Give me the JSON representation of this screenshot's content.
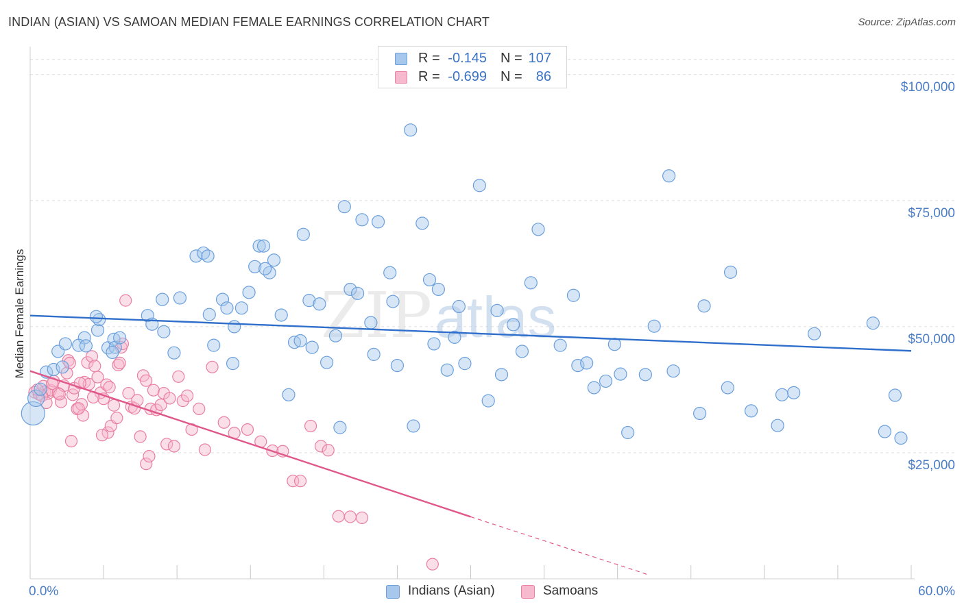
{
  "header": {
    "title": "INDIAN (ASIAN) VS SAMOAN MEDIAN FEMALE EARNINGS CORRELATION CHART",
    "source": "Source: ZipAtlas.com"
  },
  "legend_top": {
    "rows": [
      {
        "r_label": "R =",
        "r_value": "-0.145",
        "n_label": "N =",
        "n_value": "107"
      },
      {
        "r_label": "R =",
        "r_value": "-0.699",
        "n_label": "N =",
        "n_value": "86"
      }
    ]
  },
  "legend_bottom": {
    "items": [
      {
        "label": "Indians (Asian)"
      },
      {
        "label": "Samoans"
      }
    ]
  },
  "watermark": {
    "part1": "ZIP",
    "part2": "atlas"
  },
  "colors": {
    "blue_fill": "#a7c7ec",
    "blue_stroke": "#6a9fdc",
    "blue_line": "#2f6fcb",
    "pink_fill": "#f6b9cd",
    "pink_stroke": "#e97fa3",
    "pink_line": "#e0588a",
    "axis_text": "#4a7cc7",
    "grid": "#dcdcdc"
  },
  "chart_data": {
    "type": "scatter",
    "title": "INDIAN (ASIAN) VS SAMOAN MEDIAN FEMALE EARNINGS CORRELATION CHART",
    "xlabel": "",
    "ylabel": "Median Female Earnings",
    "xlim": [
      0,
      60
    ],
    "ylim": [
      0,
      105000
    ],
    "x_tick_labels": {
      "left": "0.0%",
      "right": "60.0%"
    },
    "y_ticks": [
      {
        "value": 25000,
        "label": "$25,000"
      },
      {
        "value": 50000,
        "label": "$50,000"
      },
      {
        "value": 75000,
        "label": "$75,000"
      },
      {
        "value": 100000,
        "label": "$100,000"
      }
    ],
    "grid": true,
    "legend": "bottom-center",
    "series": [
      {
        "name": "Indians (Asian)",
        "color": "#6a9fdc",
        "r": -0.145,
        "n": 107,
        "trend": {
          "x0": 0,
          "y0": 52200,
          "x1": 60,
          "y1": 45200
        },
        "points": [
          [
            0.2,
            32800
          ],
          [
            0.4,
            35800
          ],
          [
            0.7,
            37600
          ],
          [
            1.1,
            41000
          ],
          [
            1.6,
            41500
          ],
          [
            2.2,
            42000
          ],
          [
            1.9,
            45100
          ],
          [
            2.4,
            46600
          ],
          [
            3.7,
            47800
          ],
          [
            3.3,
            46300
          ],
          [
            4.6,
            49300
          ],
          [
            5.3,
            45800
          ],
          [
            5.7,
            47500
          ],
          [
            5.8,
            45900
          ],
          [
            6.1,
            47800
          ],
          [
            5.6,
            44900
          ],
          [
            4.7,
            51400
          ],
          [
            4.5,
            52000
          ],
          [
            8.0,
            52200
          ],
          [
            8.3,
            50500
          ],
          [
            9.1,
            49000
          ],
          [
            9.0,
            55400
          ],
          [
            10.2,
            55700
          ],
          [
            9.8,
            44800
          ],
          [
            11.3,
            64000
          ],
          [
            11.8,
            64600
          ],
          [
            12.2,
            52400
          ],
          [
            12.5,
            46300
          ],
          [
            13.1,
            55400
          ],
          [
            13.4,
            53700
          ],
          [
            13.8,
            42700
          ],
          [
            13.9,
            50000
          ],
          [
            14.4,
            53700
          ],
          [
            14.9,
            56800
          ],
          [
            15.3,
            61900
          ],
          [
            15.6,
            66000
          ],
          [
            15.9,
            66000
          ],
          [
            16.3,
            60700
          ],
          [
            16.6,
            63200
          ],
          [
            17.1,
            52300
          ],
          [
            17.6,
            36500
          ],
          [
            18.0,
            46900
          ],
          [
            18.4,
            47200
          ],
          [
            18.6,
            68300
          ],
          [
            19.0,
            55200
          ],
          [
            19.2,
            45900
          ],
          [
            19.7,
            54500
          ],
          [
            20.2,
            42900
          ],
          [
            20.8,
            48200
          ],
          [
            21.1,
            30000
          ],
          [
            21.4,
            73800
          ],
          [
            21.8,
            57400
          ],
          [
            22.3,
            56600
          ],
          [
            22.6,
            71200
          ],
          [
            23.2,
            50800
          ],
          [
            23.4,
            44500
          ],
          [
            23.7,
            70800
          ],
          [
            24.5,
            60700
          ],
          [
            24.7,
            55000
          ],
          [
            25.0,
            42300
          ],
          [
            25.9,
            89000
          ],
          [
            26.1,
            30300
          ],
          [
            26.7,
            70500
          ],
          [
            27.2,
            59300
          ],
          [
            27.5,
            46600
          ],
          [
            27.8,
            57400
          ],
          [
            28.4,
            41400
          ],
          [
            28.9,
            47900
          ],
          [
            29.2,
            54000
          ],
          [
            29.6,
            42700
          ],
          [
            30.6,
            78000
          ],
          [
            31.2,
            35300
          ],
          [
            31.8,
            53200
          ],
          [
            32.1,
            40500
          ],
          [
            32.9,
            50400
          ],
          [
            33.5,
            45100
          ],
          [
            34.1,
            58700
          ],
          [
            34.6,
            69300
          ],
          [
            36.1,
            46300
          ],
          [
            37.0,
            56200
          ],
          [
            37.3,
            42300
          ],
          [
            37.9,
            42800
          ],
          [
            38.4,
            37900
          ],
          [
            39.2,
            39200
          ],
          [
            39.8,
            46500
          ],
          [
            40.2,
            40600
          ],
          [
            40.7,
            29000
          ],
          [
            41.9,
            40500
          ],
          [
            42.5,
            50100
          ],
          [
            43.5,
            79900
          ],
          [
            43.8,
            41200
          ],
          [
            45.6,
            32800
          ],
          [
            45.9,
            54100
          ],
          [
            47.5,
            37900
          ],
          [
            47.7,
            60800
          ],
          [
            49.1,
            33300
          ],
          [
            50.9,
            30400
          ],
          [
            51.2,
            36500
          ],
          [
            52.0,
            36900
          ],
          [
            53.4,
            48600
          ],
          [
            58.2,
            29200
          ],
          [
            59.3,
            27900
          ],
          [
            58.9,
            36400
          ],
          [
            57.4,
            50700
          ],
          [
            12.1,
            64000
          ],
          [
            3.8,
            46200
          ],
          [
            16.0,
            61500
          ]
        ]
      },
      {
        "name": "Samoans",
        "color": "#e97fa3",
        "r": -0.699,
        "n": 86,
        "trend": {
          "x0": 0,
          "y0": 41200,
          "x1": 30,
          "y1": 12300,
          "dashed_to": {
            "x": 42,
            "y": 900
          }
        },
        "points": [
          [
            0.3,
            37000
          ],
          [
            0.6,
            36600
          ],
          [
            0.9,
            38200
          ],
          [
            1.0,
            37100
          ],
          [
            1.2,
            36700
          ],
          [
            1.4,
            37400
          ],
          [
            1.6,
            39200
          ],
          [
            1.9,
            36800
          ],
          [
            2.1,
            35100
          ],
          [
            2.3,
            38300
          ],
          [
            2.5,
            40800
          ],
          [
            2.6,
            43300
          ],
          [
            2.7,
            42800
          ],
          [
            2.9,
            36500
          ],
          [
            3.0,
            37800
          ],
          [
            3.2,
            33700
          ],
          [
            3.5,
            34600
          ],
          [
            3.6,
            32400
          ],
          [
            3.7,
            39000
          ],
          [
            3.9,
            42900
          ],
          [
            4.0,
            38600
          ],
          [
            4.2,
            44100
          ],
          [
            4.4,
            42200
          ],
          [
            4.6,
            40000
          ],
          [
            4.8,
            36900
          ],
          [
            5.0,
            35700
          ],
          [
            5.2,
            38500
          ],
          [
            5.3,
            29000
          ],
          [
            5.5,
            30300
          ],
          [
            5.7,
            34400
          ],
          [
            6.0,
            42400
          ],
          [
            6.2,
            45900
          ],
          [
            6.3,
            46600
          ],
          [
            6.5,
            55200
          ],
          [
            6.7,
            36800
          ],
          [
            6.9,
            34100
          ],
          [
            7.1,
            33800
          ],
          [
            7.3,
            35400
          ],
          [
            7.5,
            28200
          ],
          [
            7.7,
            40300
          ],
          [
            7.9,
            39300
          ],
          [
            8.2,
            33700
          ],
          [
            8.4,
            37400
          ],
          [
            8.6,
            33500
          ],
          [
            8.9,
            34500
          ],
          [
            9.1,
            36800
          ],
          [
            9.3,
            26700
          ],
          [
            9.5,
            35800
          ],
          [
            9.8,
            26300
          ],
          [
            10.1,
            40100
          ],
          [
            10.4,
            35300
          ],
          [
            10.7,
            36300
          ],
          [
            11.0,
            29600
          ],
          [
            11.5,
            33700
          ],
          [
            11.9,
            25600
          ],
          [
            12.4,
            42000
          ],
          [
            13.2,
            31000
          ],
          [
            13.9,
            28900
          ],
          [
            14.8,
            29600
          ],
          [
            15.7,
            27200
          ],
          [
            16.5,
            25400
          ],
          [
            17.2,
            25300
          ],
          [
            17.9,
            19400
          ],
          [
            18.4,
            19400
          ],
          [
            19.1,
            30300
          ],
          [
            19.8,
            26300
          ],
          [
            20.3,
            25500
          ],
          [
            21.0,
            12400
          ],
          [
            21.8,
            12300
          ],
          [
            22.6,
            12100
          ],
          [
            27.4,
            2900
          ],
          [
            5.4,
            38000
          ],
          [
            6.1,
            42800
          ],
          [
            7.9,
            22800
          ],
          [
            8.1,
            24300
          ],
          [
            4.9,
            28500
          ],
          [
            2.8,
            27300
          ],
          [
            3.3,
            33800
          ],
          [
            1.5,
            38700
          ],
          [
            0.8,
            36300
          ],
          [
            0.5,
            37500
          ],
          [
            1.1,
            34900
          ],
          [
            2.0,
            36600
          ],
          [
            3.4,
            38800
          ],
          [
            4.3,
            36000
          ],
          [
            5.9,
            31900
          ]
        ]
      }
    ]
  }
}
